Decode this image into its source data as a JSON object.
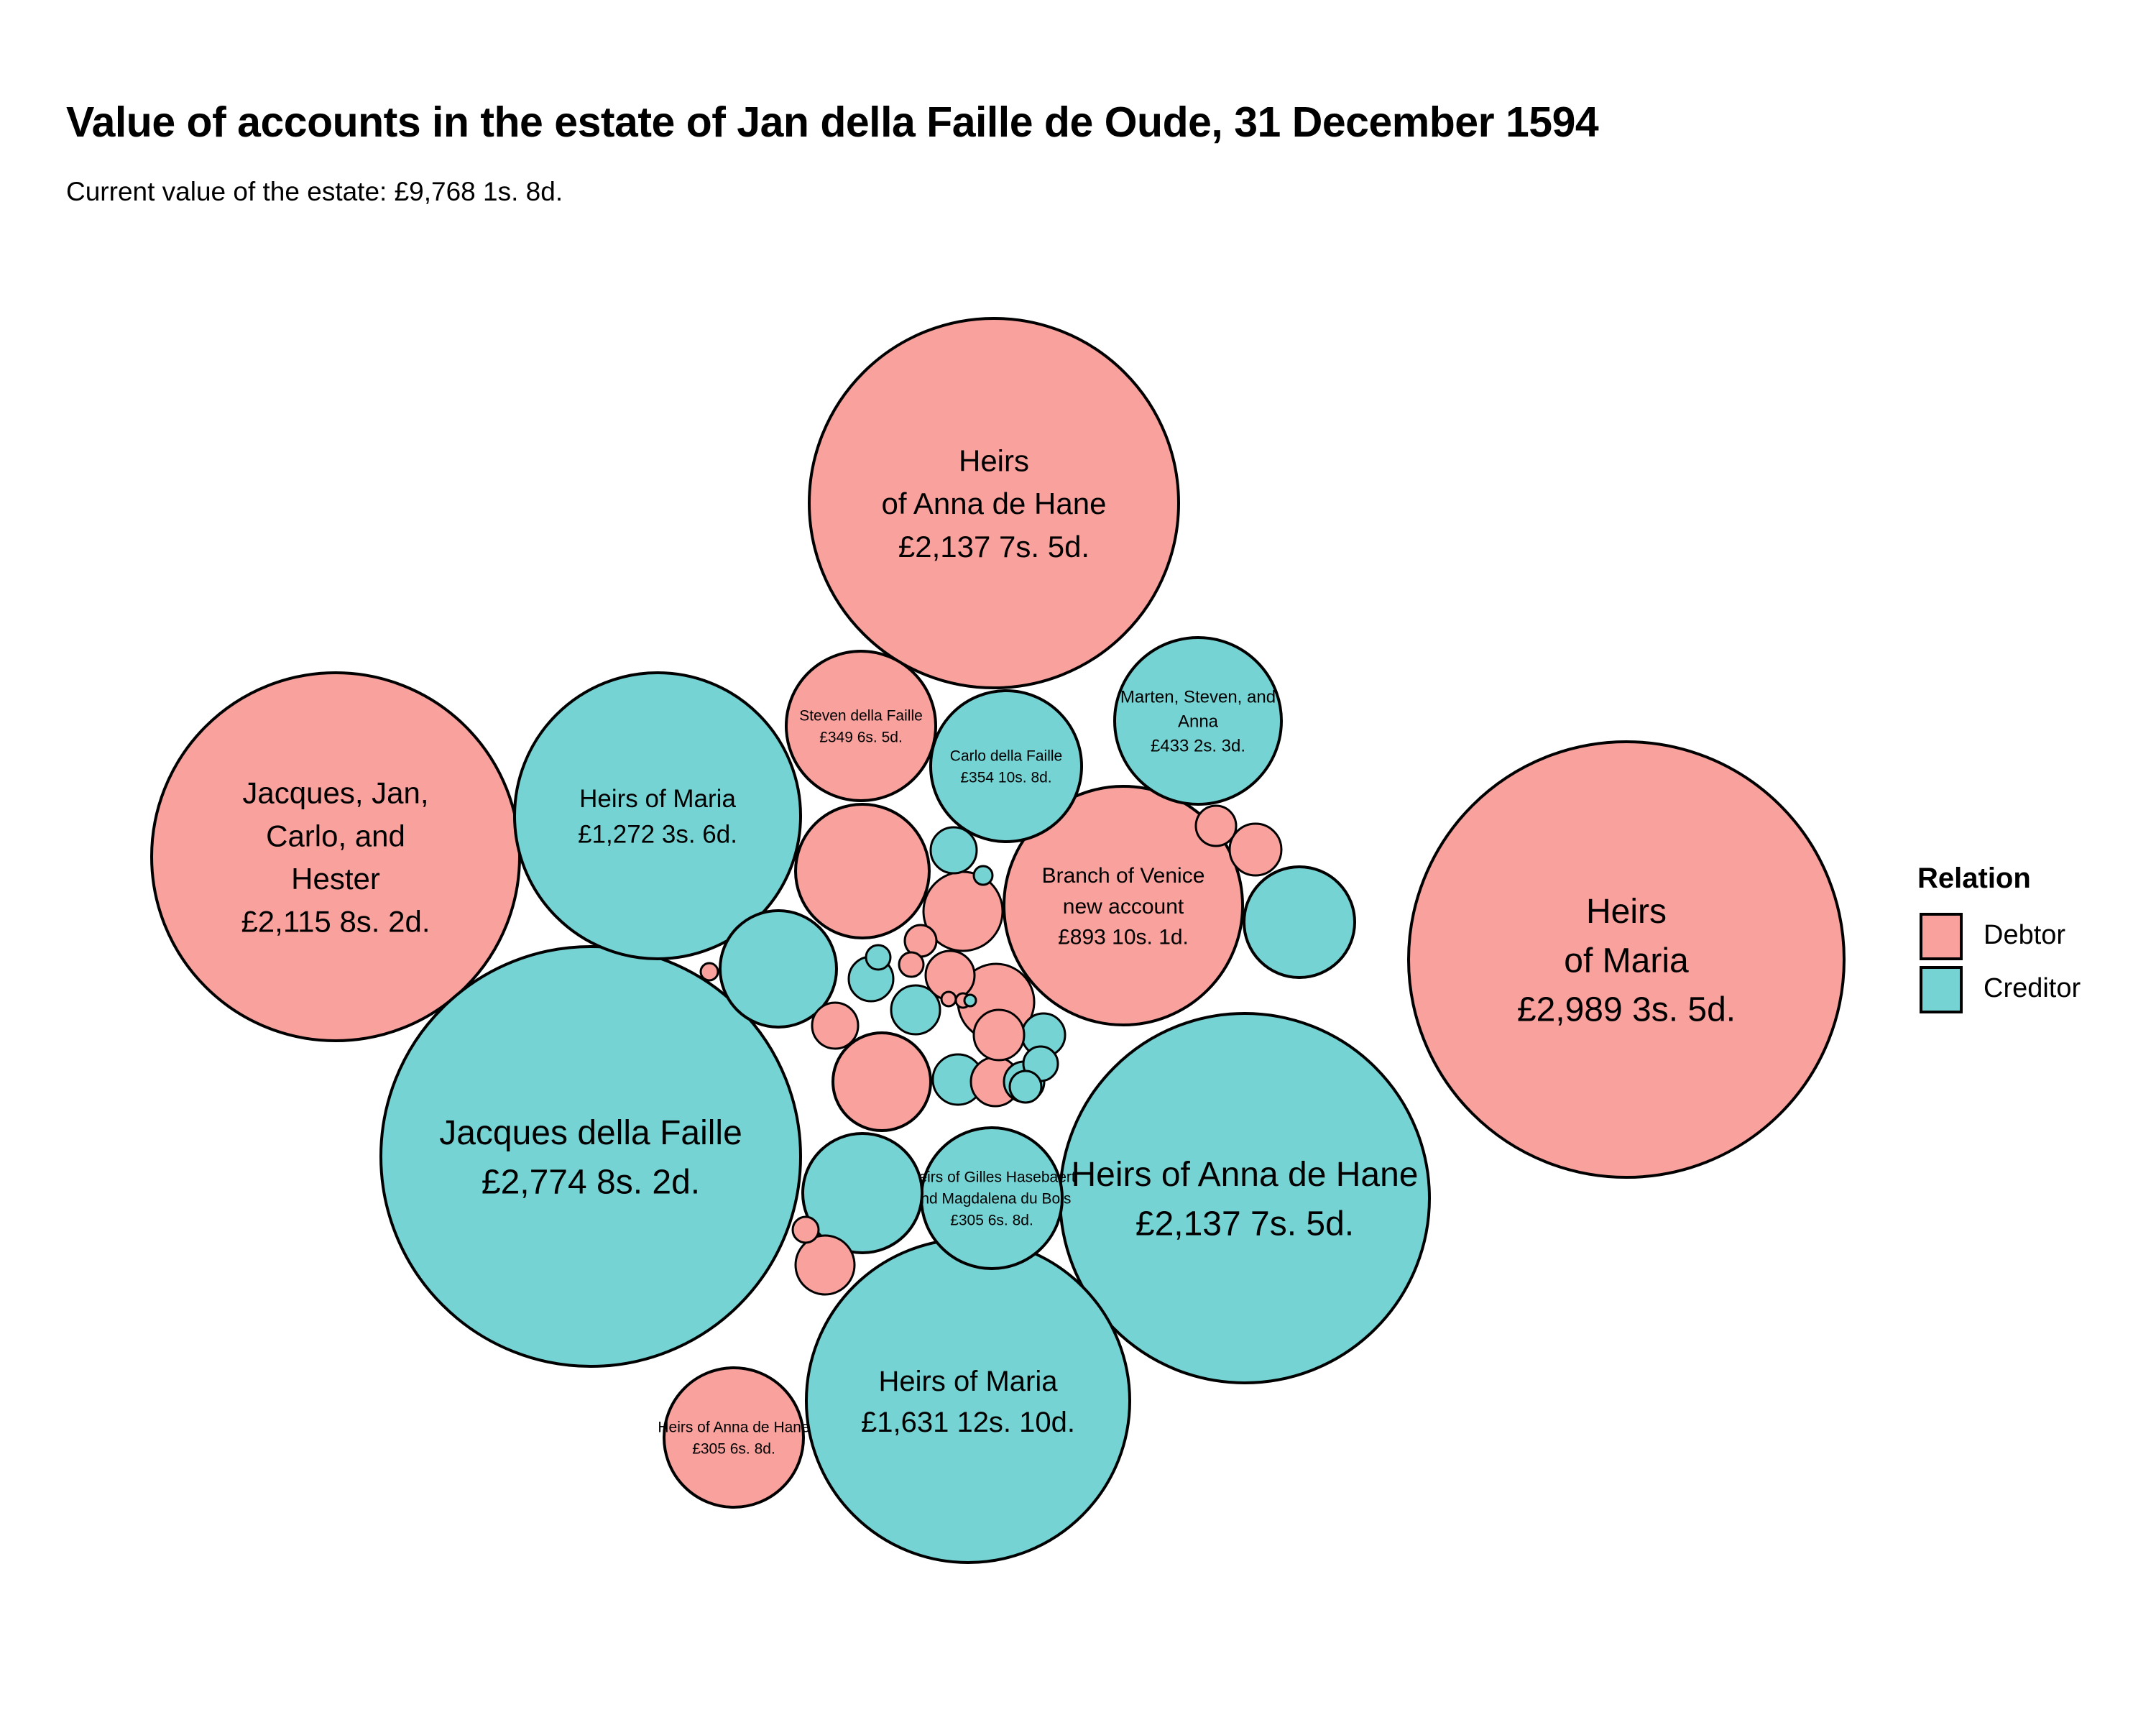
{
  "chart_data": {
    "type": "bubble",
    "title": "Value of accounts in the estate of Jan della Faille de Oude, 31 December 1594",
    "subtitle": "Current value of the estate: £9,768 1s. 8d.",
    "legend": {
      "title": "Relation",
      "placement": "right",
      "entries": [
        {
          "label": "Debtor",
          "color": "#F8A19D"
        },
        {
          "label": "Creditor",
          "color": "#76D3D4"
        }
      ]
    },
    "bubbles": [
      {
        "name": "Heirs of Anna de Hane",
        "value": "£2,137 7s. 5d.",
        "relation": "Debtor"
      },
      {
        "name": "Heirs of Maria",
        "value": "£2,989 3s. 5d.",
        "relation": "Debtor"
      },
      {
        "name": "Jacques, Jan, Carlo, and Hester",
        "value": "£2,115 8s. 2d.",
        "relation": "Debtor"
      },
      {
        "name": "Jacques della Faille",
        "value": "£2,774 8s. 2d.",
        "relation": "Creditor"
      },
      {
        "name": "Heirs of Anna de Hane",
        "value": "£2,137 7s. 5d.",
        "relation": "Creditor"
      },
      {
        "name": "Heirs of Maria",
        "value": "£1,631 12s. 10d.",
        "relation": "Creditor"
      },
      {
        "name": "Heirs of Maria",
        "value": "£1,272 3s. 6d.",
        "relation": "Creditor"
      },
      {
        "name": "Branch of Venice new account",
        "value": "£893 10s. 1d.",
        "relation": "Debtor"
      },
      {
        "name": "Marten, Steven, and Anna",
        "value": "£433 2s. 3d.",
        "relation": "Creditor"
      },
      {
        "name": "Carlo della Faille",
        "value": "£354 10s. 8d.",
        "relation": "Creditor"
      },
      {
        "name": "Steven della Faille",
        "value": "£349 6s. 5d.",
        "relation": "Debtor"
      },
      {
        "name": "Heirs of Gilles Hasebaert and Magdalena du Bois",
        "value": "£305 6s. 8d.",
        "relation": "Creditor"
      },
      {
        "name": "Heirs of Anna de Hane",
        "value": "£305 6s. 8d.",
        "relation": "Debtor"
      },
      {
        "name": "",
        "value": "",
        "relation": "Debtor"
      },
      {
        "name": "",
        "value": "",
        "relation": "Creditor"
      },
      {
        "name": "",
        "value": "",
        "relation": "Creditor"
      },
      {
        "name": "",
        "value": "",
        "relation": "Creditor"
      },
      {
        "name": "",
        "value": "",
        "relation": "Debtor"
      },
      {
        "name": "",
        "value": "",
        "relation": "Debtor"
      },
      {
        "name": "",
        "value": "",
        "relation": "Debtor"
      },
      {
        "name": "",
        "value": "",
        "relation": "Debtor"
      },
      {
        "name": "",
        "value": "",
        "relation": "Creditor"
      },
      {
        "name": "",
        "value": "",
        "relation": "Debtor"
      },
      {
        "name": "",
        "value": "",
        "relation": "Creditor"
      },
      {
        "name": "",
        "value": "",
        "relation": "Debtor"
      },
      {
        "name": "",
        "value": "",
        "relation": "Creditor"
      },
      {
        "name": "",
        "value": "",
        "relation": "Debtor"
      },
      {
        "name": "",
        "value": "",
        "relation": "Creditor"
      },
      {
        "name": "",
        "value": "",
        "relation": "Creditor"
      },
      {
        "name": "",
        "value": "",
        "relation": "Debtor"
      },
      {
        "name": "",
        "value": "",
        "relation": "Debtor"
      },
      {
        "name": "",
        "value": "",
        "relation": "Debtor"
      },
      {
        "name": "",
        "value": "",
        "relation": "Creditor"
      },
      {
        "name": "",
        "value": "",
        "relation": "Creditor"
      },
      {
        "name": "",
        "value": "",
        "relation": "Debtor"
      },
      {
        "name": "",
        "value": "",
        "relation": "Creditor"
      },
      {
        "name": "",
        "value": "",
        "relation": "Creditor"
      },
      {
        "name": "",
        "value": "",
        "relation": "Debtor"
      },
      {
        "name": "",
        "value": "",
        "relation": "Creditor"
      },
      {
        "name": "",
        "value": "",
        "relation": "Debtor"
      },
      {
        "name": "",
        "value": "",
        "relation": "Debtor"
      },
      {
        "name": "",
        "value": "",
        "relation": "Debtor"
      },
      {
        "name": "",
        "value": "",
        "relation": "Debtor"
      },
      {
        "name": "",
        "value": "",
        "relation": "Creditor"
      }
    ]
  }
}
